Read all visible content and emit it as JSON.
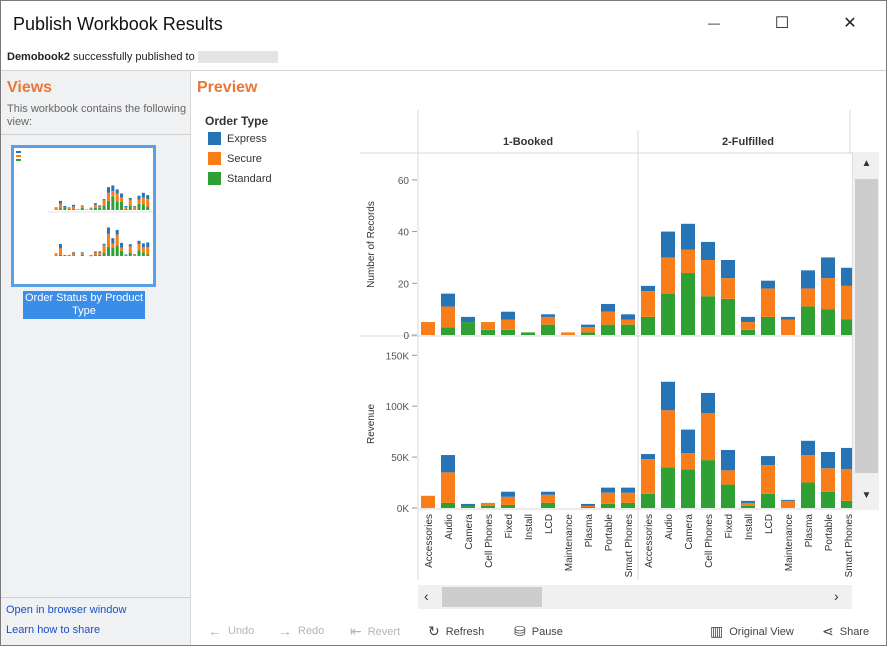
{
  "window": {
    "title": "Publish Workbook Results",
    "minimize": "—",
    "maximize": "☐",
    "close": "✕"
  },
  "status": {
    "workbook": "Demobook2",
    "message": "successfully published to"
  },
  "sidebar": {
    "heading": "Views",
    "description": "This workbook contains the following view:",
    "view_label": "Order Status by Product Type",
    "link_browser": "Open in browser window",
    "link_share": "Learn how to share"
  },
  "preview": {
    "heading": "Preview"
  },
  "legend": {
    "title": "Order Type",
    "items": [
      {
        "label": "Express",
        "color": "#2673b6"
      },
      {
        "label": "Secure",
        "color": "#f97e1a"
      },
      {
        "label": "Standard",
        "color": "#2fa034"
      }
    ]
  },
  "chart_data": {
    "type": "bar",
    "stacked": true,
    "panels": [
      "1-Booked",
      "2-Fulfilled"
    ],
    "categories": [
      "Accessories",
      "Audio",
      "Camera",
      "Cell Phones",
      "Fixed",
      "Install",
      "LCD",
      "Maintenance",
      "Plasma",
      "Portable",
      "Smart Phones"
    ],
    "series_names": [
      "Standard",
      "Secure",
      "Express"
    ],
    "rows": [
      {
        "ylabel": "Number of Records",
        "ylim": [
          0,
          70
        ],
        "ticks": [
          0,
          20,
          40,
          60
        ],
        "tick_labels": [
          "0",
          "20",
          "40",
          "60"
        ],
        "data": {
          "1-Booked": {
            "Standard": [
              0,
              3,
              5,
              2,
              2,
              1,
              4,
              0,
              1,
              4,
              4
            ],
            "Secure": [
              5,
              8,
              0,
              3,
              4,
              0,
              3,
              1,
              2,
              5,
              2
            ],
            "Express": [
              0,
              5,
              2,
              0,
              3,
              0,
              1,
              0,
              1,
              3,
              2
            ]
          },
          "2-Fulfilled": {
            "Standard": [
              7,
              16,
              24,
              15,
              14,
              2,
              7,
              0,
              11,
              10,
              6
            ],
            "Secure": [
              10,
              14,
              9,
              14,
              8,
              3,
              11,
              6,
              7,
              12,
              13
            ],
            "Express": [
              2,
              10,
              10,
              7,
              7,
              2,
              3,
              1,
              7,
              8,
              7
            ]
          }
        }
      },
      {
        "ylabel": "Revenue",
        "ylim": [
          0,
          165000
        ],
        "ticks": [
          0,
          50000,
          100000,
          150000
        ],
        "tick_labels": [
          "0K",
          "50K",
          "100K",
          "150K"
        ],
        "data": {
          "1-Booked": {
            "Standard": [
              0,
              5000,
              2000,
              2000,
              3000,
              0,
              5000,
              0,
              1000,
              4000,
              5000
            ],
            "Secure": [
              12000,
              30000,
              0,
              3000,
              8000,
              0,
              8000,
              0,
              1000,
              11000,
              10000
            ],
            "Express": [
              0,
              17000,
              2000,
              0,
              5000,
              0,
              3000,
              0,
              2000,
              5000,
              5000
            ]
          },
          "2-Fulfilled": {
            "Standard": [
              14000,
              40000,
              38000,
              47000,
              23000,
              2000,
              14000,
              0,
              25000,
              16000,
              7000
            ],
            "Secure": [
              34000,
              56000,
              16000,
              46000,
              14000,
              3000,
              28000,
              7000,
              27000,
              23000,
              31000
            ],
            "Express": [
              5000,
              28000,
              23000,
              20000,
              20000,
              2000,
              9000,
              1000,
              14000,
              16000,
              21000
            ]
          }
        }
      }
    ]
  },
  "scroll": {
    "up": "▲",
    "down": "▼",
    "left": "‹",
    "right": "›"
  },
  "toolbar": {
    "undo": "Undo",
    "redo": "Redo",
    "revert": "Revert",
    "refresh": "Refresh",
    "pause": "Pause",
    "original_view": "Original View",
    "share": "Share"
  }
}
